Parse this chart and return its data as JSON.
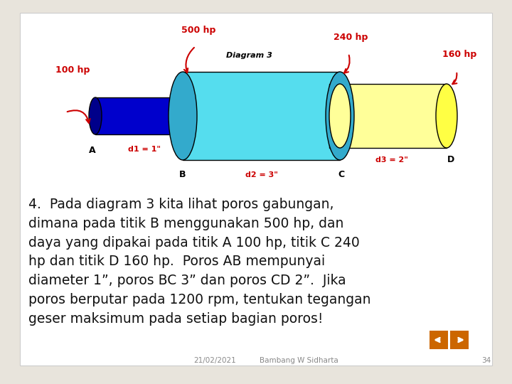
{
  "slide_bg": "#e8e4dc",
  "content_bg": "#ffffff",
  "shaft_AB_color": "#0000cc",
  "shaft_AB_dark": "#00008a",
  "shaft_BC_color": "#55ddee",
  "shaft_BC_dark": "#33aacc",
  "shaft_CD_color": "#eeeebb",
  "shaft_CD_light": "#ffff99",
  "shaft_CD_end_color": "#ffff44",
  "shaft_CD_dark": "#cccc88",
  "arrow_color": "#cc0000",
  "text_color": "#000000",
  "label_color": "#cc0000",
  "diagram_label": "Diagram 3",
  "hp_500": "500 hp",
  "hp_240": "240 hp",
  "hp_160": "160 hp",
  "hp_100": "100 hp",
  "label_A": "A",
  "label_B": "B",
  "label_C": "C",
  "label_D": "D",
  "d1_label": "d1 = 1\"",
  "d2_label": "d2 = 3\"",
  "d3_label": "d3 = 2\"",
  "body_line1": "4.  Pada diagram 3 kita lihat poros gabungan,",
  "body_line2": "dimana pada titik B menggunakan 500 hp, dan",
  "body_line3": "daya yang dipakai pada titik A 100 hp, titik C 240",
  "body_line4": "hp dan titik D 160 hp.  Poros AB mempunyai",
  "body_line5": "diameter 1”, poros BC 3” dan poros CD 2”.  Jika",
  "body_line6": "poros berputar pada 1200 rpm, tentukan tegangan",
  "body_line7": "geser maksimum pada setiap bagian poros!",
  "footer_date": "21/02/2021",
  "footer_author": "Bambang W Sidharta",
  "footer_page": "34",
  "nav_color": "#cc6600"
}
